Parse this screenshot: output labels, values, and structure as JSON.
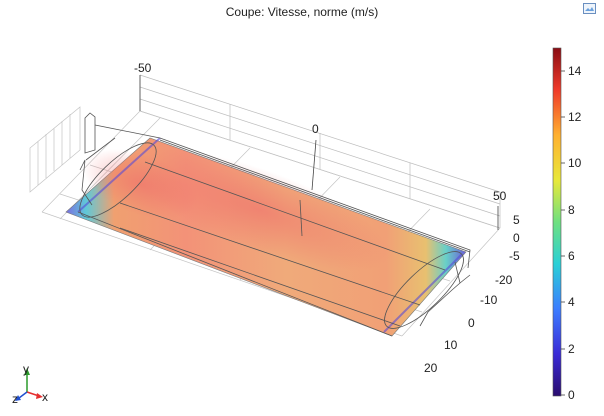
{
  "plot": {
    "title": "Coupe: Vitesse, norme (m/s)",
    "colorbar_ticks": [
      "14",
      "12",
      "10",
      "8",
      "6",
      "4",
      "2",
      "0"
    ],
    "axis_ticks": {
      "x_top": [
        "-50",
        "0",
        "50"
      ],
      "z_side": [
        "5",
        "0",
        "-5"
      ],
      "y_front": [
        "-20",
        "-10",
        "0",
        "10",
        "20"
      ]
    },
    "triad": {
      "x": "x",
      "y": "y",
      "z": "z"
    },
    "colormap_range": [
      0,
      15
    ]
  },
  "colors": {
    "axis_x": "#e53030",
    "axis_y": "#2a9a2a",
    "axis_z": "#2050d0"
  }
}
